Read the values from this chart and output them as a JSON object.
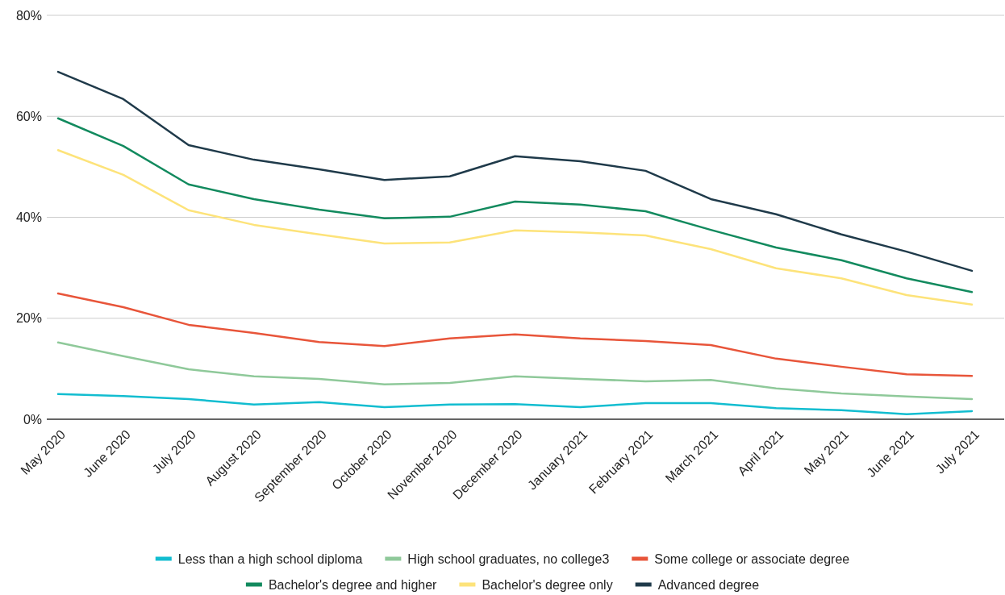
{
  "chart_data": {
    "type": "line",
    "categories": [
      "May 2020",
      "June 2020",
      "July 2020",
      "August 2020",
      "September 2020",
      "October 2020",
      "November 2020",
      "December 2020",
      "January 2021",
      "February 2021",
      "March 2021",
      "April 2021",
      "May 2021",
      "June 2021",
      "July 2021"
    ],
    "series": [
      {
        "name": "Less than a high school diploma",
        "color": "#12bdd0",
        "values": [
          5.0,
          4.6,
          4.0,
          2.9,
          3.4,
          2.4,
          2.9,
          3.0,
          2.4,
          3.2,
          3.2,
          2.2,
          1.8,
          1.0,
          1.6
        ]
      },
      {
        "name": "High school graduates, no college3",
        "color": "#8fc99a",
        "values": [
          15.2,
          12.5,
          9.9,
          8.5,
          8.0,
          6.9,
          7.2,
          8.5,
          8.0,
          7.5,
          7.8,
          6.1,
          5.1,
          4.5,
          4.0
        ]
      },
      {
        "name": "Some college or associate degree",
        "color": "#e8553a",
        "values": [
          24.9,
          22.2,
          18.7,
          17.1,
          15.3,
          14.5,
          16.0,
          16.8,
          16.0,
          15.5,
          14.7,
          12.0,
          10.4,
          8.9,
          8.6
        ]
      },
      {
        "name": "Bachelor's degree and higher",
        "color": "#128a5e",
        "values": [
          59.6,
          54.1,
          46.5,
          43.6,
          41.5,
          39.8,
          40.1,
          43.1,
          42.5,
          41.2,
          37.5,
          34.0,
          31.5,
          27.9,
          25.2
        ]
      },
      {
        "name": "Bachelor's degree only",
        "color": "#fde37a",
        "values": [
          53.3,
          48.4,
          41.4,
          38.5,
          36.6,
          34.8,
          35.0,
          37.4,
          37.0,
          36.4,
          33.7,
          29.9,
          27.9,
          24.6,
          22.7
        ]
      },
      {
        "name": "Advanced degree",
        "color": "#1f3a4a",
        "values": [
          68.8,
          63.4,
          54.3,
          51.4,
          49.5,
          47.4,
          48.1,
          52.1,
          51.1,
          49.2,
          43.6,
          40.6,
          36.6,
          33.2,
          29.4
        ]
      }
    ],
    "ylim": [
      0,
      80
    ],
    "yticks": [
      {
        "value": 0,
        "label": "0%"
      },
      {
        "value": 20,
        "label": "20%"
      },
      {
        "value": 40,
        "label": "40%"
      },
      {
        "value": 60,
        "label": "60%"
      },
      {
        "value": 80,
        "label": "80%"
      }
    ],
    "grid": "y",
    "legend": "bottom",
    "marker": "none",
    "line_style": "solid"
  }
}
